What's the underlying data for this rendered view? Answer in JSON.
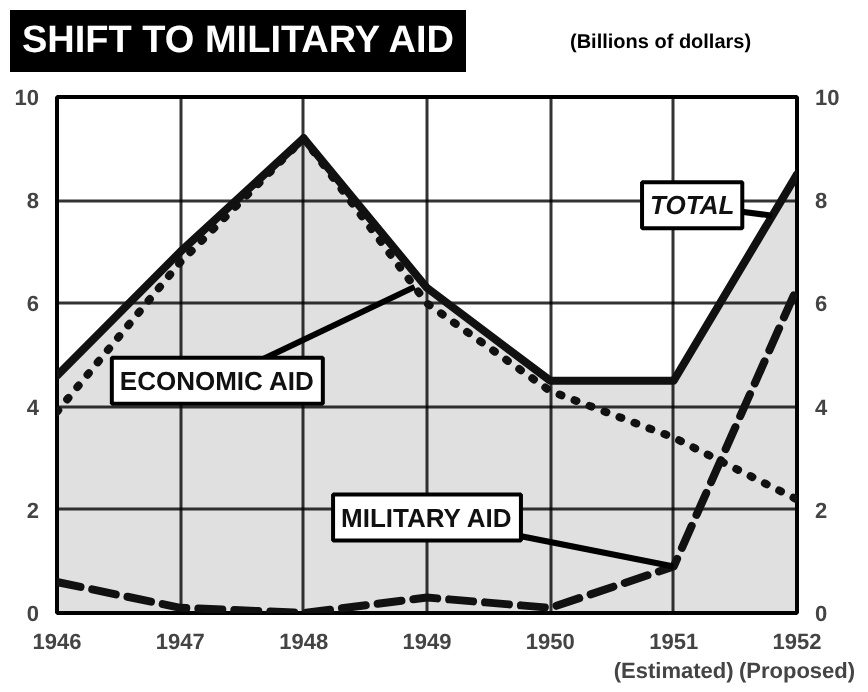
{
  "chart_data": {
    "type": "line",
    "title": "SHIFT TO MILITARY AID",
    "subtitle": "(Billions of dollars)",
    "x": [
      1946,
      1947,
      1948,
      1949,
      1950,
      1951,
      1952
    ],
    "series": [
      {
        "name": "TOTAL",
        "type": "area",
        "color": "#111111",
        "line_style": "solid",
        "values": [
          4.6,
          7.0,
          9.2,
          6.3,
          4.5,
          4.5,
          8.5
        ]
      },
      {
        "name": "ECONOMIC AID",
        "color": "#111111",
        "line_style": "dotted",
        "values": [
          3.9,
          6.8,
          9.2,
          6.0,
          4.3,
          3.4,
          2.2
        ]
      },
      {
        "name": "MILITARY AID",
        "color": "#111111",
        "line_style": "dashed",
        "values": [
          0.6,
          0.1,
          0.0,
          0.3,
          0.1,
          0.9,
          6.3
        ]
      }
    ],
    "xlim": [
      1946,
      1952
    ],
    "ylim": [
      0,
      10
    ],
    "xticks": [
      1946,
      1947,
      1948,
      1949,
      1950,
      {
        "value": 1951,
        "label": "1951\n(Estimated)"
      },
      {
        "value": 1952,
        "label": "1952\n(Proposed)"
      }
    ],
    "yticks": [
      0,
      2,
      4,
      6,
      8,
      10
    ],
    "y2lim": [
      0,
      10
    ],
    "y2ticks": [
      0,
      2,
      4,
      6,
      8,
      10
    ],
    "grid": true
  }
}
